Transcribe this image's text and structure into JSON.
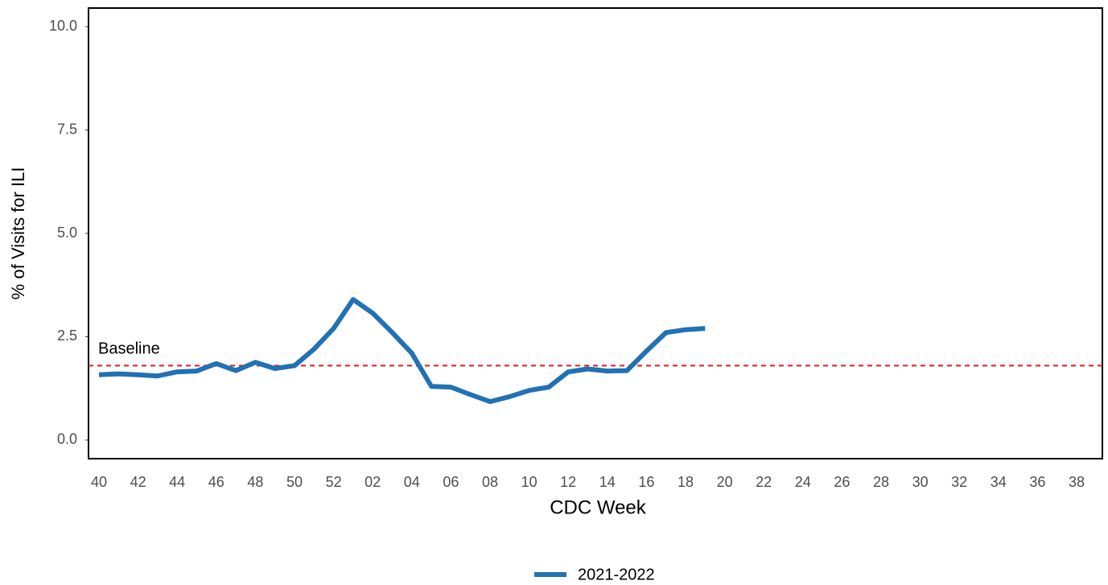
{
  "chart_data": {
    "type": "line",
    "x_label": "CDC Week",
    "y_label": "% of Visits for ILI",
    "categories": [
      "40",
      null,
      "42",
      null,
      "44",
      null,
      "46",
      null,
      "48",
      null,
      "50",
      null,
      "52",
      null,
      "02",
      null,
      "04",
      null,
      "06",
      null,
      "08",
      null,
      "10",
      null,
      "12",
      null,
      "14",
      null,
      "16",
      null,
      "18",
      null,
      "20",
      null,
      "22",
      null,
      "24",
      null,
      "26",
      null,
      "28",
      null,
      "30",
      null,
      "32",
      null,
      "34",
      null,
      "36",
      null,
      "38",
      null
    ],
    "series": [
      {
        "name": "2021-2022",
        "color": "#2171b5",
        "values": [
          1.58,
          1.6,
          1.58,
          1.55,
          1.65,
          1.67,
          1.85,
          1.68,
          1.88,
          1.73,
          1.8,
          2.2,
          2.7,
          3.4,
          3.07,
          2.6,
          2.1,
          1.3,
          1.28,
          1.1,
          0.93,
          1.05,
          1.2,
          1.28,
          1.65,
          1.72,
          1.67,
          1.68,
          2.15,
          2.6,
          2.67,
          2.7,
          null,
          null,
          null,
          null,
          null,
          null,
          null,
          null,
          null,
          null,
          null,
          null,
          null,
          null,
          null,
          null,
          null,
          null,
          null,
          null
        ]
      }
    ],
    "baseline": {
      "label": "Baseline",
      "value": 1.8,
      "color": "#e31a1c"
    },
    "ylim": [
      -0.45,
      10.45
    ],
    "yticks": [
      {
        "value": 0,
        "label": "0.0"
      },
      2.5,
      {
        "value": 5,
        "label": "5.0"
      },
      7.5,
      {
        "value": 10,
        "label": "10.0"
      }
    ],
    "legend": "bottom"
  }
}
